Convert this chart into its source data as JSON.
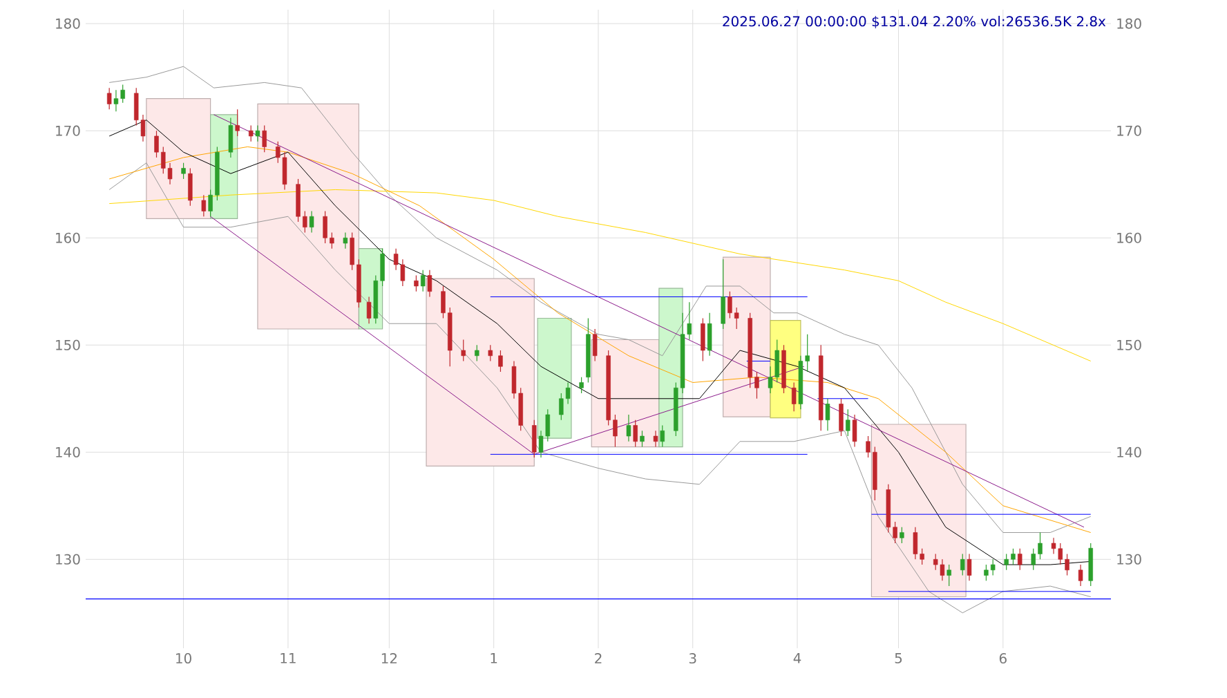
{
  "chart_data": {
    "type": "candlestick",
    "title": "2025.06.27 00:00:00 $131.04 2.20% vol:26536.5K 2.8x",
    "x": [
      "2024-09-09",
      "2024-09-11",
      "2024-09-13",
      "2024-09-17",
      "2024-09-19",
      "2024-09-23",
      "2024-09-25",
      "2024-09-27",
      "2024-10-01",
      "2024-10-03",
      "2024-10-07",
      "2024-10-09",
      "2024-10-11",
      "2024-10-15",
      "2024-10-17",
      "2024-10-21",
      "2024-10-23",
      "2024-10-25",
      "2024-10-29",
      "2024-10-31",
      "2024-11-04",
      "2024-11-06",
      "2024-11-08",
      "2024-11-12",
      "2024-11-14",
      "2024-11-18",
      "2024-11-20",
      "2024-11-22",
      "2024-11-25",
      "2024-11-27",
      "2024-11-29",
      "2024-12-03",
      "2024-12-05",
      "2024-12-09",
      "2024-12-11",
      "2024-12-13",
      "2024-12-17",
      "2024-12-19",
      "2024-12-23",
      "2024-12-27",
      "2024-12-31",
      "2025-01-03",
      "2025-01-07",
      "2025-01-09",
      "2025-01-13",
      "2025-01-15",
      "2025-01-17",
      "2025-01-21",
      "2025-01-23",
      "2025-01-27",
      "2025-01-29",
      "2025-01-31",
      "2025-02-04",
      "2025-02-06",
      "2025-02-10",
      "2025-02-12",
      "2025-02-14",
      "2025-02-18",
      "2025-02-20",
      "2025-02-24",
      "2025-02-26",
      "2025-02-28",
      "2025-03-04",
      "2025-03-06",
      "2025-03-10",
      "2025-03-12",
      "2025-03-14",
      "2025-03-18",
      "2025-03-20",
      "2025-03-24",
      "2025-03-26",
      "2025-03-28",
      "2025-03-31",
      "2025-04-02",
      "2025-04-04",
      "2025-04-08",
      "2025-04-10",
      "2025-04-14",
      "2025-04-16",
      "2025-04-18",
      "2025-04-22",
      "2025-04-24",
      "2025-04-28",
      "2025-04-30",
      "2025-05-02",
      "2025-05-06",
      "2025-05-08",
      "2025-05-12",
      "2025-05-14",
      "2025-05-16",
      "2025-05-20",
      "2025-05-22",
      "2025-05-27",
      "2025-05-29",
      "2025-06-02",
      "2025-06-04",
      "2025-06-06",
      "2025-06-10",
      "2025-06-12",
      "2025-06-16",
      "2025-06-18",
      "2025-06-20",
      "2025-06-24",
      "2025-06-27"
    ],
    "ohlc": [
      [
        173.5,
        174,
        172,
        172.5
      ],
      [
        172.5,
        173.8,
        171.8,
        173
      ],
      [
        173,
        174.3,
        172.6,
        173.8
      ],
      [
        173.5,
        174,
        170.5,
        171
      ],
      [
        171,
        171.5,
        169,
        169.5
      ],
      [
        169.5,
        170,
        167.5,
        168
      ],
      [
        168,
        168.5,
        166,
        166.5
      ],
      [
        166.5,
        167,
        165,
        165.5
      ],
      [
        166,
        167,
        165.5,
        166.5
      ],
      [
        166,
        166.5,
        163,
        163.5
      ],
      [
        163.5,
        164,
        162,
        162.5
      ],
      [
        162.5,
        164.5,
        162,
        164
      ],
      [
        164,
        168.5,
        163.5,
        168
      ],
      [
        168,
        171.2,
        167.5,
        170.5
      ],
      [
        170.5,
        172,
        169.5,
        170
      ],
      [
        170,
        170.5,
        169,
        169.5
      ],
      [
        169.5,
        170.5,
        169,
        170
      ],
      [
        170,
        170.5,
        168,
        168.5
      ],
      [
        168.5,
        169,
        167,
        167.5
      ],
      [
        167.5,
        168,
        164.5,
        165
      ],
      [
        165,
        165.5,
        161.5,
        162
      ],
      [
        162,
        162.5,
        160.5,
        161
      ],
      [
        161,
        162.5,
        160.5,
        162
      ],
      [
        162,
        162.5,
        159.5,
        160
      ],
      [
        160,
        160.5,
        159,
        159.5
      ],
      [
        159.5,
        160.5,
        159,
        160
      ],
      [
        160,
        160.5,
        157,
        157.5
      ],
      [
        157.5,
        158,
        153.5,
        154
      ],
      [
        154,
        154.5,
        152,
        152.5
      ],
      [
        152.5,
        156.5,
        152,
        156
      ],
      [
        156,
        159,
        155.5,
        158.5
      ],
      [
        158.5,
        159,
        157,
        157.5
      ],
      [
        157.5,
        158,
        155.5,
        156
      ],
      [
        156,
        156.5,
        155,
        155.5
      ],
      [
        155.5,
        157,
        155,
        156.5
      ],
      [
        156.5,
        157,
        154.5,
        155
      ],
      [
        155,
        155.5,
        152.5,
        153
      ],
      [
        153,
        153.5,
        148,
        149.5
      ],
      [
        149.5,
        150.5,
        148.5,
        149
      ],
      [
        149,
        150,
        148.5,
        149.5
      ],
      [
        149.5,
        150,
        148.5,
        149
      ],
      [
        149,
        149.5,
        147.5,
        148
      ],
      [
        148,
        148.5,
        145,
        145.5
      ],
      [
        145.5,
        146,
        142,
        142.5
      ],
      [
        142.5,
        143,
        139.5,
        140
      ],
      [
        140,
        142,
        139.5,
        141.5
      ],
      [
        141.5,
        144,
        141,
        143.5
      ],
      [
        143.5,
        145.5,
        143,
        145
      ],
      [
        145,
        146.5,
        144.5,
        146
      ],
      [
        146,
        147,
        145.5,
        146.5
      ],
      [
        147,
        152.5,
        146.5,
        151
      ],
      [
        151,
        151.5,
        148.5,
        149
      ],
      [
        149,
        149.5,
        142.5,
        143
      ],
      [
        143,
        143.5,
        140.5,
        141.5
      ],
      [
        141.5,
        143.5,
        141,
        142.5
      ],
      [
        142.5,
        143,
        140.5,
        141
      ],
      [
        141,
        142,
        140.5,
        141.5
      ],
      [
        141.5,
        142,
        140.5,
        141
      ],
      [
        141,
        142.5,
        140.5,
        142
      ],
      [
        142,
        146.5,
        141.5,
        146
      ],
      [
        146,
        153,
        145.5,
        151
      ],
      [
        151,
        154,
        150.5,
        152
      ],
      [
        152,
        152.5,
        148.5,
        149.5
      ],
      [
        149.5,
        153,
        149,
        152
      ],
      [
        152,
        158,
        151.5,
        154.5
      ],
      [
        154.5,
        155,
        152.5,
        153
      ],
      [
        153,
        153.5,
        151.5,
        152.5
      ],
      [
        152.5,
        153,
        146,
        147
      ],
      [
        147,
        147.5,
        145,
        146
      ],
      [
        146,
        148,
        145.5,
        147
      ],
      [
        147,
        150.5,
        146.5,
        149.5
      ],
      [
        149.5,
        150,
        145.5,
        146
      ],
      [
        146,
        146.5,
        143.8,
        144.5
      ],
      [
        144.5,
        149,
        144,
        148.5
      ],
      [
        148.5,
        151,
        147.5,
        149
      ],
      [
        149,
        150,
        142,
        143
      ],
      [
        143,
        145,
        142,
        144.5
      ],
      [
        144.5,
        145,
        141.5,
        142
      ],
      [
        142,
        144,
        141.5,
        143
      ],
      [
        143,
        143.5,
        140.5,
        141
      ],
      [
        141,
        141.5,
        139.5,
        140
      ],
      [
        140,
        140.5,
        135.5,
        136.5
      ],
      [
        136.5,
        137,
        132.5,
        133
      ],
      [
        133,
        133.5,
        131.5,
        132
      ],
      [
        132,
        133,
        131.5,
        132.5
      ],
      [
        132.5,
        133,
        130,
        130.5
      ],
      [
        130.5,
        131,
        129.5,
        130
      ],
      [
        130,
        130.5,
        129,
        129.5
      ],
      [
        129.5,
        130,
        128,
        128.5
      ],
      [
        128.5,
        129.5,
        127.5,
        129
      ],
      [
        129,
        130.5,
        128.5,
        130
      ],
      [
        130,
        130.5,
        128,
        128.5
      ],
      [
        128.5,
        129.5,
        128,
        129
      ],
      [
        129,
        130,
        128.5,
        129.5
      ],
      [
        129.5,
        130.5,
        129,
        130
      ],
      [
        130,
        131,
        129.5,
        130.5
      ],
      [
        130.5,
        131,
        129,
        129.5
      ],
      [
        129.5,
        131,
        129,
        130.5
      ],
      [
        130.5,
        132.5,
        130,
        131.5
      ],
      [
        131.5,
        132,
        130.5,
        131
      ],
      [
        131,
        131.5,
        129.5,
        130
      ],
      [
        130,
        130.5,
        128.5,
        129
      ],
      [
        129,
        129.5,
        127.5,
        128
      ],
      [
        128,
        131.5,
        127.5,
        131.04
      ]
    ],
    "colors": [
      "#c0272d",
      "#2ca02c",
      "#2ca02c",
      "#c0272d",
      "#c0272d",
      "#c0272d",
      "#c0272d",
      "#c0272d",
      "#2ca02c",
      "#c0272d",
      "#c0272d",
      "#2ca02c",
      "#2ca02c",
      "#2ca02c",
      "#c0272d",
      "#c0272d",
      "#2ca02c",
      "#c0272d",
      "#c0272d",
      "#c0272d",
      "#c0272d",
      "#c0272d",
      "#2ca02c",
      "#c0272d",
      "#c0272d",
      "#2ca02c",
      "#c0272d",
      "#c0272d",
      "#c0272d",
      "#2ca02c",
      "#2ca02c",
      "#c0272d",
      "#c0272d",
      "#c0272d",
      "#2ca02c",
      "#c0272d",
      "#c0272d",
      "#c0272d",
      "#c0272d",
      "#2ca02c",
      "#c0272d",
      "#c0272d",
      "#c0272d",
      "#c0272d",
      "#c0272d",
      "#2ca02c",
      "#2ca02c",
      "#2ca02c",
      "#2ca02c",
      "#2ca02c",
      "#2ca02c",
      "#c0272d",
      "#c0272d",
      "#c0272d",
      "#2ca02c",
      "#c0272d",
      "#2ca02c",
      "#c0272d",
      "#2ca02c",
      "#2ca02c",
      "#2ca02c",
      "#2ca02c",
      "#c0272d",
      "#2ca02c",
      "#2ca02c",
      "#c0272d",
      "#c0272d",
      "#c0272d",
      "#c0272d",
      "#2ca02c",
      "#2ca02c",
      "#c0272d",
      "#c0272d",
      "#2ca02c",
      "#2ca02c",
      "#c0272d",
      "#2ca02c",
      "#c0272d",
      "#2ca02c",
      "#c0272d",
      "#c0272d",
      "#c0272d",
      "#c0272d",
      "#c0272d",
      "#2ca02c",
      "#c0272d",
      "#c0272d",
      "#c0272d",
      "#c0272d",
      "#2ca02c",
      "#2ca02c",
      "#c0272d",
      "#2ca02c",
      "#2ca02c",
      "#2ca02c",
      "#2ca02c",
      "#c0272d",
      "#2ca02c",
      "#2ca02c",
      "#c0272d",
      "#c0272d",
      "#c0272d",
      "#c0272d",
      "#2ca02c"
    ],
    "series": [
      {
        "type": "area",
        "color": "#fde8e8",
        "x": [
          "2024-09-20",
          "2024-10-09",
          "2024-10-09",
          "2024-09-20"
        ],
        "values": [
          161.8,
          161.8,
          173,
          173
        ]
      },
      {
        "type": "area",
        "color": "#ccf7cc",
        "x": [
          "2024-10-09",
          "2024-10-17",
          "2024-10-17",
          "2024-10-09"
        ],
        "values": [
          161.8,
          161.8,
          171.5,
          171.5
        ]
      },
      {
        "type": "area",
        "color": "#fde8e8",
        "x": [
          "2024-10-23",
          "2024-11-22",
          "2024-11-22",
          "2024-10-23"
        ],
        "values": [
          151.5,
          151.5,
          172.5,
          172.5
        ]
      },
      {
        "type": "area",
        "color": "#ccf7cc",
        "x": [
          "2024-11-22",
          "2024-11-29",
          "2024-11-29",
          "2024-11-22"
        ],
        "values": [
          151.5,
          151.5,
          159,
          159
        ]
      },
      {
        "type": "area",
        "color": "#fde8e8",
        "x": [
          "2024-12-12",
          "2025-01-13",
          "2025-01-13",
          "2024-12-12"
        ],
        "values": [
          138.7,
          138.7,
          156.2,
          156.2
        ]
      },
      {
        "type": "area",
        "color": "#ccf7cc",
        "x": [
          "2025-01-14",
          "2025-01-24",
          "2025-01-24",
          "2025-01-14"
        ],
        "values": [
          141.3,
          141.3,
          152.5,
          152.5
        ]
      },
      {
        "type": "area",
        "color": "#fde8e8",
        "x": [
          "2025-01-30",
          "2025-02-19",
          "2025-02-19",
          "2025-01-30"
        ],
        "values": [
          140.5,
          140.5,
          150.5,
          150.5
        ]
      },
      {
        "type": "area",
        "color": "#ccf7cc",
        "x": [
          "2025-02-19",
          "2025-02-26",
          "2025-02-26",
          "2025-02-19"
        ],
        "values": [
          140.5,
          140.5,
          155.3,
          155.3
        ]
      },
      {
        "type": "area",
        "color": "#fde8e8",
        "x": [
          "2025-03-10",
          "2025-03-24",
          "2025-03-24",
          "2025-03-10"
        ],
        "values": [
          143.3,
          143.3,
          158.2,
          158.2
        ]
      },
      {
        "type": "area",
        "color": "#ffff80",
        "x": [
          "2025-03-24",
          "2025-04-02",
          "2025-04-02",
          "2025-03-24"
        ],
        "values": [
          143.2,
          143.2,
          152.3,
          152.3
        ]
      },
      {
        "type": "area",
        "color": "#fde8e8",
        "x": [
          "2025-04-23",
          "2025-05-21",
          "2025-05-21",
          "2025-04-23"
        ],
        "values": [
          126.5,
          126.5,
          142.6,
          142.6
        ]
      },
      {
        "type": "line",
        "color": "#999999",
        "x": [
          "2024-09-09",
          "2024-09-20",
          "2024-10-01",
          "2024-10-10",
          "2024-10-25",
          "2024-11-05",
          "2024-11-20",
          "2024-12-01",
          "2024-12-15",
          "2025-01-02",
          "2025-01-15",
          "2025-02-01",
          "2025-02-10",
          "2025-02-20",
          "2025-03-05",
          "2025-03-15",
          "2025-03-25",
          "2025-04-01",
          "2025-04-15",
          "2025-04-25",
          "2025-05-05",
          "2025-05-20",
          "2025-06-01",
          "2025-06-15",
          "2025-06-27"
        ],
        "values": [
          174.5,
          175,
          176,
          174,
          174.5,
          174,
          168,
          164,
          160,
          157,
          154,
          151,
          150.5,
          149,
          155.5,
          155.5,
          153,
          153,
          151,
          150,
          146,
          137,
          132.5,
          132.5,
          134
        ]
      },
      {
        "type": "line",
        "color": "#999999",
        "x": [
          "2024-09-09",
          "2024-09-20",
          "2024-10-01",
          "2024-10-15",
          "2024-11-01",
          "2024-11-15",
          "2024-12-01",
          "2024-12-15",
          "2025-01-02",
          "2025-01-15",
          "2025-02-01",
          "2025-02-15",
          "2025-03-03",
          "2025-03-15",
          "2025-03-31",
          "2025-04-15",
          "2025-04-25",
          "2025-05-10",
          "2025-05-20",
          "2025-06-01",
          "2025-06-15",
          "2025-06-27"
        ],
        "values": [
          164.5,
          167,
          161,
          161,
          162,
          157,
          152,
          152,
          146,
          140,
          138.5,
          137.5,
          137,
          141,
          141,
          142,
          134,
          127,
          125,
          127,
          127.5,
          126.5
        ]
      },
      {
        "type": "line",
        "color": "#ffd700",
        "x": [
          "2024-09-09",
          "2024-10-15",
          "2024-11-15",
          "2024-12-15",
          "2025-01-01",
          "2025-01-20",
          "2025-02-15",
          "2025-03-15",
          "2025-04-15",
          "2025-05-01",
          "2025-05-15",
          "2025-06-01",
          "2025-06-27"
        ],
        "values": [
          163.2,
          164,
          164.5,
          164.2,
          163.5,
          162,
          160.5,
          158.5,
          157,
          156,
          154,
          152,
          148.5
        ]
      },
      {
        "type": "line",
        "color": "#ffa500",
        "x": [
          "2024-09-09",
          "2024-10-01",
          "2024-10-20",
          "2024-11-01",
          "2024-11-20",
          "2024-12-10",
          "2025-01-01",
          "2025-01-20",
          "2025-02-10",
          "2025-03-01",
          "2025-03-20",
          "2025-04-10",
          "2025-04-25",
          "2025-05-15",
          "2025-06-01",
          "2025-06-27"
        ],
        "values": [
          165.5,
          167.5,
          168.5,
          168,
          166,
          163,
          158,
          153,
          149,
          146.5,
          147,
          146.5,
          145,
          140,
          135,
          132.5
        ]
      },
      {
        "type": "line",
        "color": "#000000",
        "x": [
          "2024-09-09",
          "2024-09-20",
          "2024-10-01",
          "2024-10-15",
          "2024-11-01",
          "2024-11-15",
          "2024-12-01",
          "2024-12-15",
          "2025-01-02",
          "2025-01-15",
          "2025-02-01",
          "2025-02-15",
          "2025-03-03",
          "2025-03-15",
          "2025-04-01",
          "2025-04-15",
          "2025-05-01",
          "2025-05-15",
          "2025-06-01",
          "2025-06-15",
          "2025-06-27"
        ],
        "values": [
          169.5,
          171,
          168,
          166,
          168,
          163,
          158,
          156,
          152,
          148,
          145,
          145,
          145,
          149.5,
          148,
          146,
          140,
          133,
          129.5,
          129.5,
          129.8
        ]
      },
      {
        "type": "line",
        "color": "#8b1a8b",
        "x": [
          "2024-10-10",
          "2025-06-25"
        ],
        "values": [
          171.5,
          133
        ]
      },
      {
        "type": "line",
        "color": "#8b1a8b",
        "x": [
          "2024-10-09",
          "2025-01-13"
        ],
        "values": [
          162,
          139.8
        ]
      },
      {
        "type": "line",
        "color": "#8b1a8b",
        "x": [
          "2025-01-13",
          "2025-04-03"
        ],
        "values": [
          139.8,
          148
        ]
      },
      {
        "type": "line",
        "color": "#0000ff",
        "x": [
          "2024-12-31",
          "2025-04-04"
        ],
        "values": [
          154.5,
          154.5
        ]
      },
      {
        "type": "line",
        "color": "#0000ff",
        "x": [
          "2024-12-31",
          "2025-04-04"
        ],
        "values": [
          139.8,
          139.8
        ]
      },
      {
        "type": "line",
        "color": "#0000ff",
        "x": [
          "2025-03-17",
          "2025-03-24"
        ],
        "values": [
          148.5,
          148.5
        ]
      },
      {
        "type": "line",
        "color": "#0000ff",
        "x": [
          "2025-04-07",
          "2025-04-22"
        ],
        "values": [
          145,
          145
        ]
      },
      {
        "type": "line",
        "color": "#0000ff",
        "x": [
          "2025-04-23",
          "2025-06-27"
        ],
        "values": [
          134.2,
          134.2
        ]
      },
      {
        "type": "line",
        "color": "#0000ff",
        "x": [
          "2025-04-28",
          "2025-06-27"
        ],
        "values": [
          127,
          127
        ]
      }
    ],
    "ref_lines": [
      {
        "axis": "y",
        "value": 126.3,
        "color": "#0000ff"
      }
    ],
    "xlim": [
      "2024-09-02",
      "2025-07-03"
    ],
    "xticks": [
      {
        "value": "2024-10-01",
        "label": "10"
      },
      {
        "value": "2024-11-01",
        "label": "11"
      },
      {
        "value": "2024-12-01",
        "label": "12"
      },
      {
        "value": "2025-01-01",
        "label": "1"
      },
      {
        "value": "2025-02-01",
        "label": "2"
      },
      {
        "value": "2025-03-01",
        "label": "3"
      },
      {
        "value": "2025-04-01",
        "label": "4"
      },
      {
        "value": "2025-05-01",
        "label": "5"
      },
      {
        "value": "2025-06-01",
        "label": "6"
      }
    ],
    "ylim": [
      121.7,
      181.3
    ],
    "yticks": [
      130,
      140,
      150,
      160,
      170,
      180
    ],
    "y2lim": [
      121.7,
      181.3
    ],
    "y2ticks": [
      130,
      140,
      150,
      160,
      170,
      180
    ],
    "grid": true
  }
}
